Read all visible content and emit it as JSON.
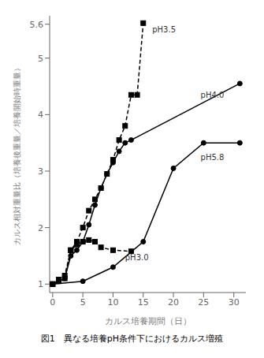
{
  "chart_data": {
    "type": "line",
    "title": "図1　異なる培養pH条件下におけるカルス増殖",
    "x_label": "カルス培養期間（日）",
    "y_label": "カルス相対重量比（培養後重量／培養開始時重量）",
    "xlim": [
      -0.5,
      32
    ],
    "ylim": [
      0.85,
      5.75
    ],
    "xticks": [
      0,
      5,
      10,
      15,
      20,
      25,
      30
    ],
    "yticks": [
      1,
      2,
      3,
      4,
      5,
      5.6
    ],
    "grid": false,
    "series": [
      {
        "x": [
          0,
          1,
          2,
          3,
          4,
          5,
          6,
          7,
          8,
          9,
          10,
          11,
          12,
          13,
          14,
          15
        ],
        "values": [
          1.0,
          1.08,
          1.15,
          1.6,
          1.75,
          2.0,
          2.3,
          2.5,
          2.7,
          2.95,
          3.2,
          3.55,
          3.8,
          4.35,
          4.35,
          5.62
        ],
        "color": "#000000",
        "line_style": "dashed",
        "marker": "square"
      },
      {
        "x": [
          0,
          1,
          2,
          3,
          4,
          5,
          6,
          7,
          8,
          9,
          10,
          11,
          12,
          13,
          31
        ],
        "values": [
          1.0,
          1.05,
          1.1,
          1.5,
          1.6,
          1.75,
          2.05,
          2.4,
          2.7,
          2.95,
          3.15,
          3.35,
          3.5,
          3.55,
          4.55
        ],
        "color": "#000000",
        "line_style": "solid",
        "marker": "circle"
      },
      {
        "x": [
          0,
          5,
          10,
          15,
          20,
          25,
          31
        ],
        "values": [
          1.0,
          1.05,
          1.3,
          1.75,
          3.05,
          3.5,
          3.5
        ],
        "color": "#000000",
        "line_style": "solid",
        "marker": "circle"
      },
      {
        "x": [
          0,
          1,
          2,
          3,
          4,
          5,
          6,
          7,
          8,
          10,
          13
        ],
        "values": [
          1.0,
          1.05,
          1.1,
          1.6,
          1.7,
          1.75,
          1.78,
          1.75,
          1.65,
          1.6,
          1.58
        ],
        "color": "#000000",
        "line_style": "dashed",
        "marker": "square"
      }
    ],
    "annotations": [
      {
        "text": "pH3.5",
        "x": 16.5,
        "y": 5.45
      },
      {
        "text": "pH4.0",
        "x": 24.5,
        "y": 4.3
      },
      {
        "text": "pH5.8",
        "x": 24.5,
        "y": 3.2
      },
      {
        "text": "pH3.0",
        "x": 12,
        "y": 1.42
      }
    ]
  }
}
